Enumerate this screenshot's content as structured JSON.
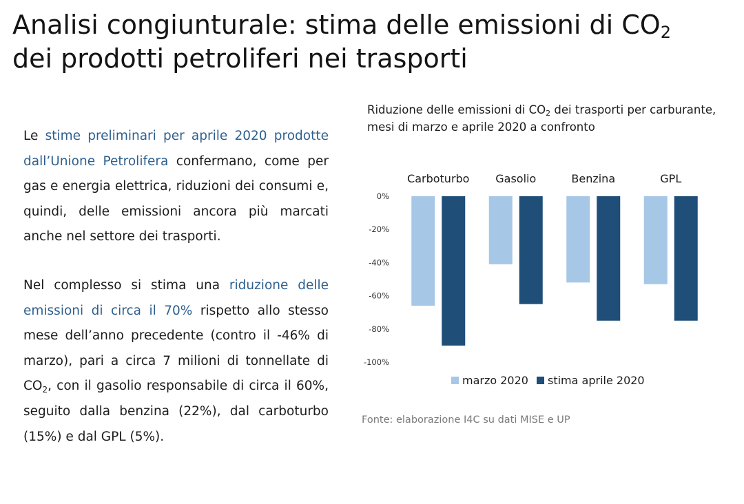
{
  "header": {
    "title_part1": "Analisi congiunturale: stima delle emissioni di CO",
    "title_sub": "2",
    "title_part2": "dei prodotti petroliferi nei trasporti"
  },
  "text": {
    "p1": {
      "a": "Le ",
      "b": "stime preliminari per aprile 2020 prodotte dall’Unione Petrolifera",
      "c": " confermano, come per gas e energia elettrica, riduzioni dei consumi e, quindi, delle emissioni ancora più marcati anche nel settore dei trasporti."
    },
    "p2": {
      "a": "Nel complesso si stima una ",
      "b": "riduzione delle emissioni di circa il 70%",
      "c": " rispetto allo stesso mese dell’anno precedente (contro il -46% di marzo), pari a circa 7 milioni di tonnellate di CO",
      "sub": "2",
      "d": ", con il gasolio responsabile di circa il 60%, seguito dalla benzina (22%), dal carboturbo (15%) e dal GPL (5%)."
    }
  },
  "chart_data": {
    "type": "bar",
    "title_part1": "Riduzione delle emissioni di CO",
    "title_sub": "2",
    "title_part2": " dei trasporti per carburante, mesi di marzo e aprile 2020 a confronto",
    "categories": [
      "Carboturbo",
      "Gasolio",
      "Benzina",
      "GPL"
    ],
    "series": [
      {
        "name": "marzo 2020",
        "color": "#a7c7e7",
        "values": [
          -66,
          -41,
          -52,
          -53
        ]
      },
      {
        "name": "stima aprile 2020",
        "color": "#1f4e79",
        "values": [
          -90,
          -65,
          -75,
          -75
        ]
      }
    ],
    "ylim": [
      -100,
      0
    ],
    "yticks": [
      "0%",
      "-20%",
      "-40%",
      "-60%",
      "-80%",
      "-100%"
    ],
    "category_position": "top",
    "legend_position": "bottom",
    "grid": false
  },
  "source": "Fonte: elaborazione I4C su dati MISE e UP"
}
